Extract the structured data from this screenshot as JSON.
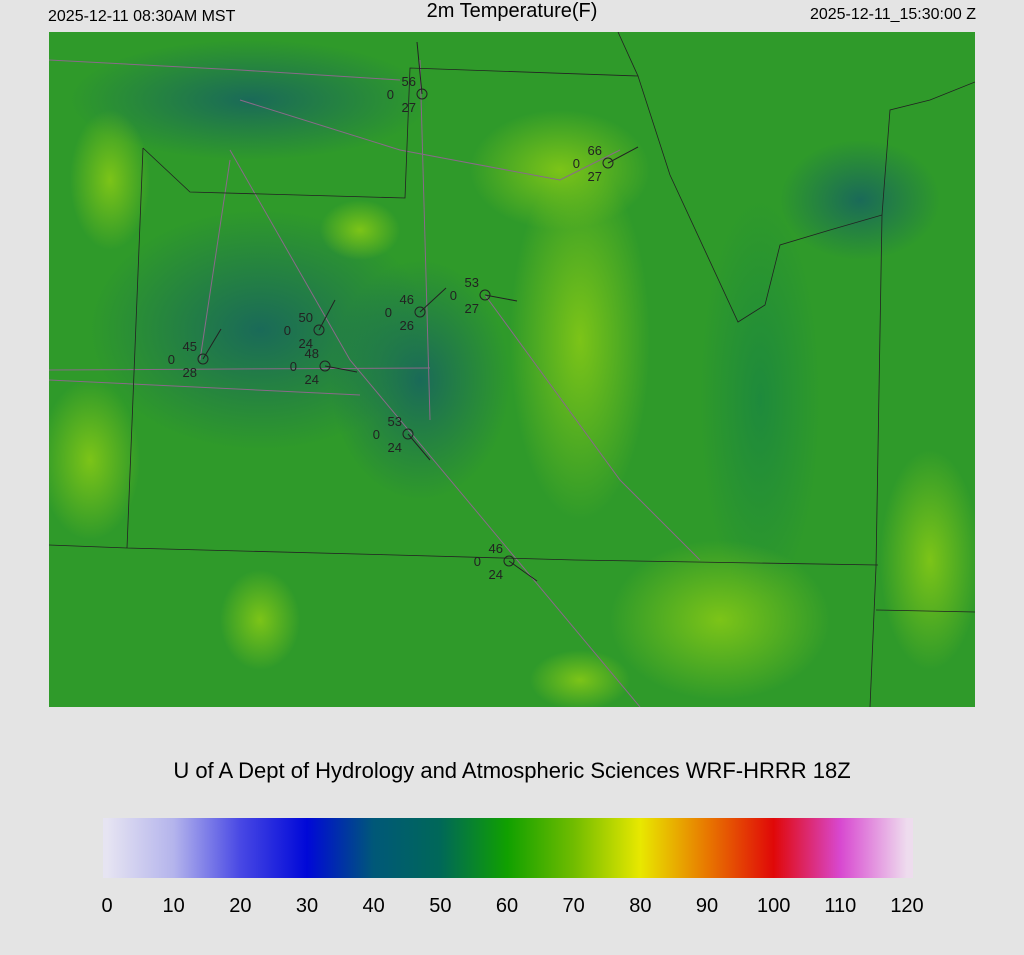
{
  "header": {
    "left": "2025-12-11 08:30AM MST",
    "title": "2m Temperature(F)",
    "right": "2025-12-11_15:30:00 Z"
  },
  "stations": [
    {
      "temp": 56,
      "wind": 0,
      "dewpoint": 27
    },
    {
      "temp": 66,
      "wind": 0,
      "dewpoint": 27
    },
    {
      "temp": 53,
      "wind": 0,
      "dewpoint": 27
    },
    {
      "temp": 46,
      "wind": 0,
      "dewpoint": 26
    },
    {
      "temp": 50,
      "wind": 0,
      "dewpoint": 24
    },
    {
      "temp": 45,
      "wind": 0,
      "dewpoint": 28
    },
    {
      "temp": 48,
      "wind": 0,
      "dewpoint": 24
    },
    {
      "temp": 53,
      "wind": 0,
      "dewpoint": 24
    },
    {
      "temp": 46,
      "wind": 0,
      "dewpoint": 24
    }
  ],
  "credit": "U of A Dept of Hydrology and Atmospheric Sciences WRF-HRRR 18Z",
  "colorbar": {
    "range": [
      0,
      120
    ],
    "ticks": [
      0,
      10,
      20,
      30,
      40,
      50,
      60,
      70,
      80,
      90,
      100,
      110,
      120
    ],
    "colors": [
      "#e6e4f2",
      "#b4b4ec",
      "#4848e4",
      "#0008d8",
      "#005878",
      "#006858",
      "#10a000",
      "#70bc00",
      "#e8e800",
      "#e87800",
      "#e00808",
      "#d848d0",
      "#eedcee"
    ]
  }
}
